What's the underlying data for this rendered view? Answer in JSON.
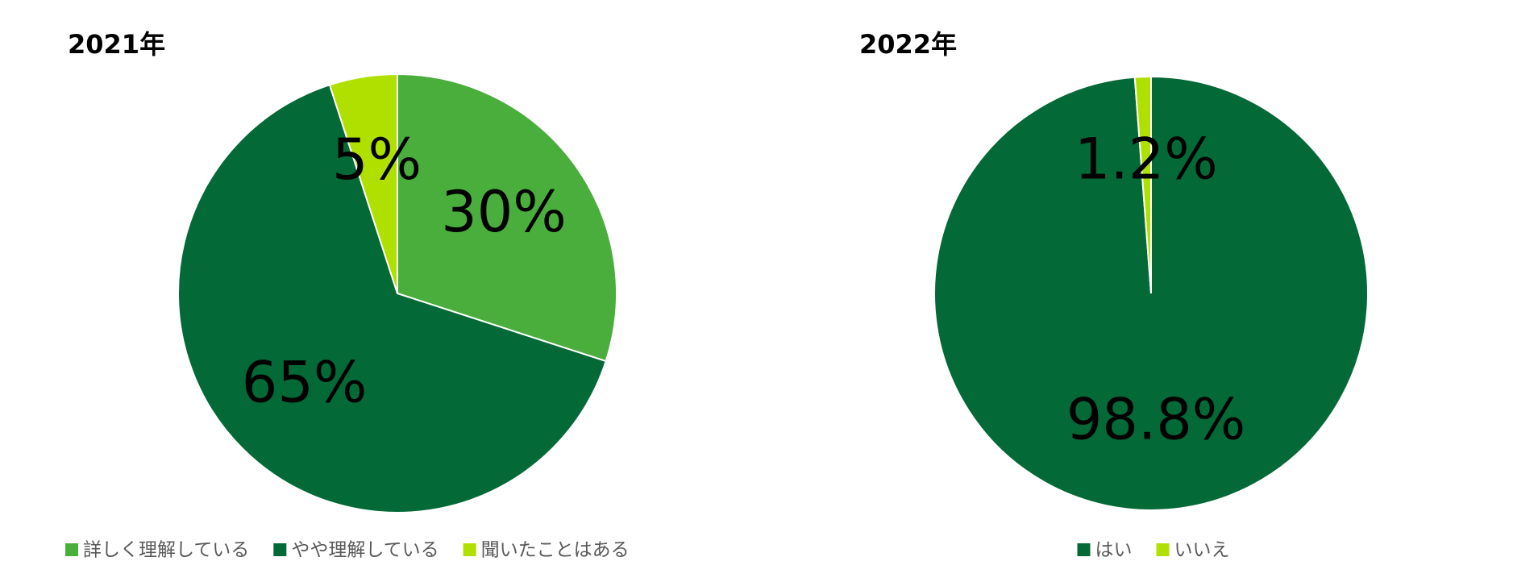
{
  "chart_data": [
    {
      "type": "pie",
      "title": "2021年",
      "categories": [
        "詳しく理解している",
        "やや理解している",
        "聞いたことはある"
      ],
      "values": [
        30,
        65,
        5
      ],
      "value_labels": [
        "30%",
        "65%",
        "5%"
      ],
      "colors": [
        "#4aae3c",
        "#036936",
        "#b0e000"
      ]
    },
    {
      "type": "pie",
      "title": "2022年",
      "categories": [
        "はい",
        "いいえ"
      ],
      "values": [
        98.8,
        1.2
      ],
      "value_labels": [
        "98.8%",
        "1.2%"
      ],
      "colors": [
        "#036936",
        "#b0e000"
      ]
    }
  ]
}
